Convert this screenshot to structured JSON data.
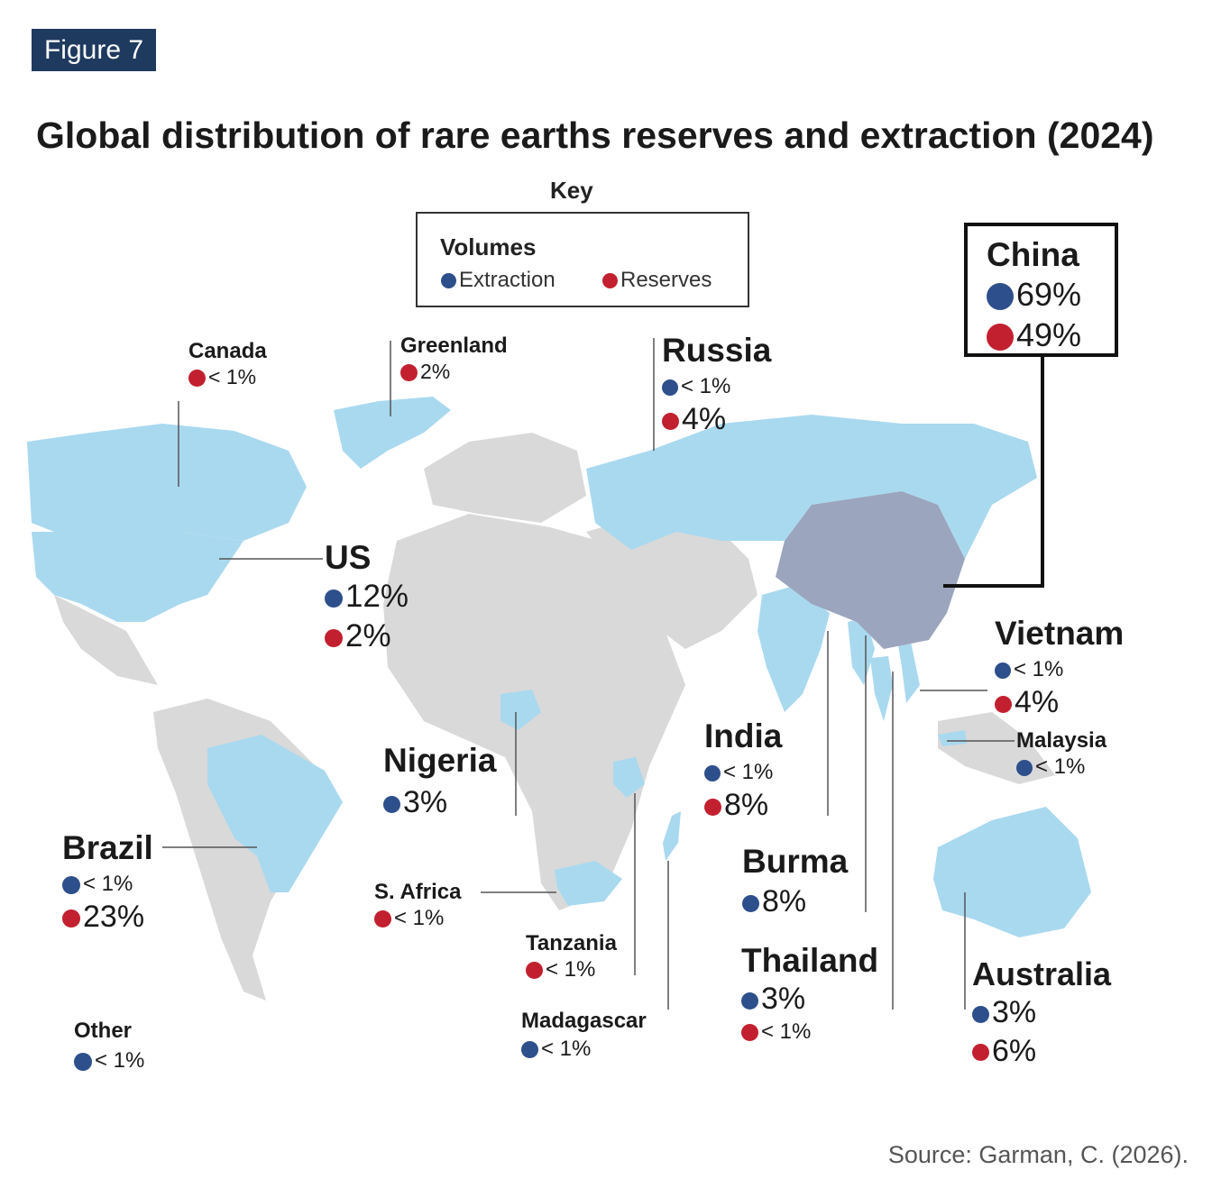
{
  "figure_label": "Figure 7",
  "title": "Global distribution of rare earths reserves and extraction (2024)",
  "key": {
    "heading": "Key",
    "title": "Volumes",
    "extraction_label": "Extraction",
    "reserves_label": "Reserves"
  },
  "colors": {
    "extraction": "#2d4f8b",
    "reserves": "#c2202f",
    "highlighted_land": "#a9d9ef",
    "china_land": "#9ba5bd",
    "other_land": "#d9d9d9",
    "figure_badge": "#1f3a5f"
  },
  "countries": {
    "canada": {
      "name": "Canada",
      "reserves": "< 1%"
    },
    "greenland": {
      "name": "Greenland",
      "reserves": "2%"
    },
    "russia": {
      "name": "Russia",
      "extraction": "< 1%",
      "reserves": "4%"
    },
    "china": {
      "name": "China",
      "extraction": "69%",
      "reserves": "49%"
    },
    "us": {
      "name": "US",
      "extraction": "12%",
      "reserves": "2%"
    },
    "vietnam": {
      "name": "Vietnam",
      "extraction": "< 1%",
      "reserves": "4%"
    },
    "malaysia": {
      "name": "Malaysia",
      "extraction": "< 1%"
    },
    "india": {
      "name": "India",
      "extraction": "< 1%",
      "reserves": "8%"
    },
    "nigeria": {
      "name": "Nigeria",
      "extraction": "3%"
    },
    "brazil": {
      "name": "Brazil",
      "extraction": "< 1%",
      "reserves": "23%"
    },
    "s_africa": {
      "name": "S. Africa",
      "reserves": "< 1%"
    },
    "burma": {
      "name": "Burma",
      "extraction": "8%"
    },
    "tanzania": {
      "name": "Tanzania",
      "reserves": "< 1%"
    },
    "thailand": {
      "name": "Thailand",
      "extraction": "3%",
      "reserves": "< 1%"
    },
    "australia": {
      "name": "Australia",
      "extraction": "3%",
      "reserves": "6%"
    },
    "madagascar": {
      "name": "Madagascar",
      "extraction": "< 1%"
    },
    "other": {
      "name": "Other",
      "extraction": "< 1%"
    }
  },
  "source": "Source: Garman, C. (2026)."
}
